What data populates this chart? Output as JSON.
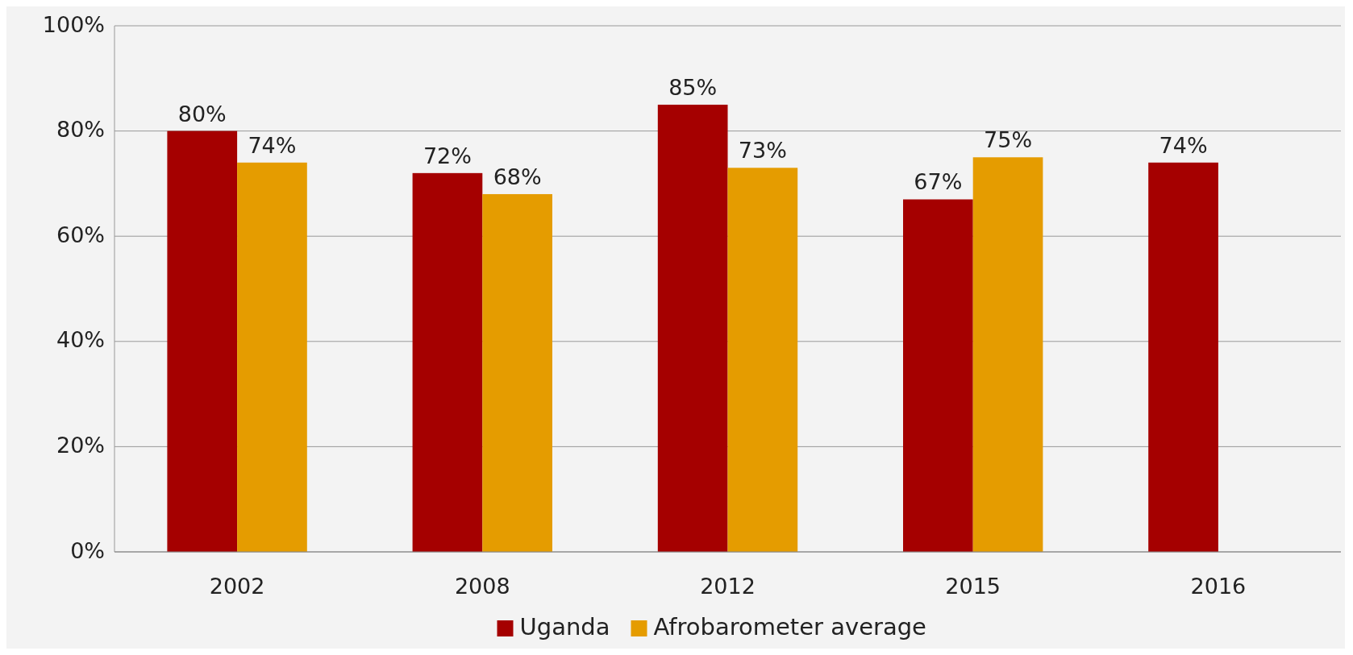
{
  "chart_data": {
    "type": "bar",
    "categories": [
      "2002",
      "2008",
      "2012",
      "2015",
      "2016"
    ],
    "series": [
      {
        "name": "Uganda",
        "color": "#a50000",
        "values": [
          80,
          72,
          85,
          67,
          74
        ],
        "value_labels": [
          "80%",
          "72%",
          "85%",
          "67%",
          "74%"
        ]
      },
      {
        "name": "Afrobarometer average",
        "color": "#e59c00",
        "values": [
          74,
          68,
          73,
          75,
          null
        ],
        "value_labels": [
          "74%",
          "68%",
          "73%",
          "75%",
          null
        ]
      }
    ],
    "ylim": [
      0,
      100
    ],
    "yticks": [
      {
        "value": 0,
        "label": "0%"
      },
      {
        "value": 20,
        "label": "20%"
      },
      {
        "value": 40,
        "label": "40%"
      },
      {
        "value": 60,
        "label": "60%"
      },
      {
        "value": 80,
        "label": "80%"
      },
      {
        "value": 100,
        "label": "100%"
      }
    ],
    "grid": "y",
    "legend": "bottom"
  }
}
